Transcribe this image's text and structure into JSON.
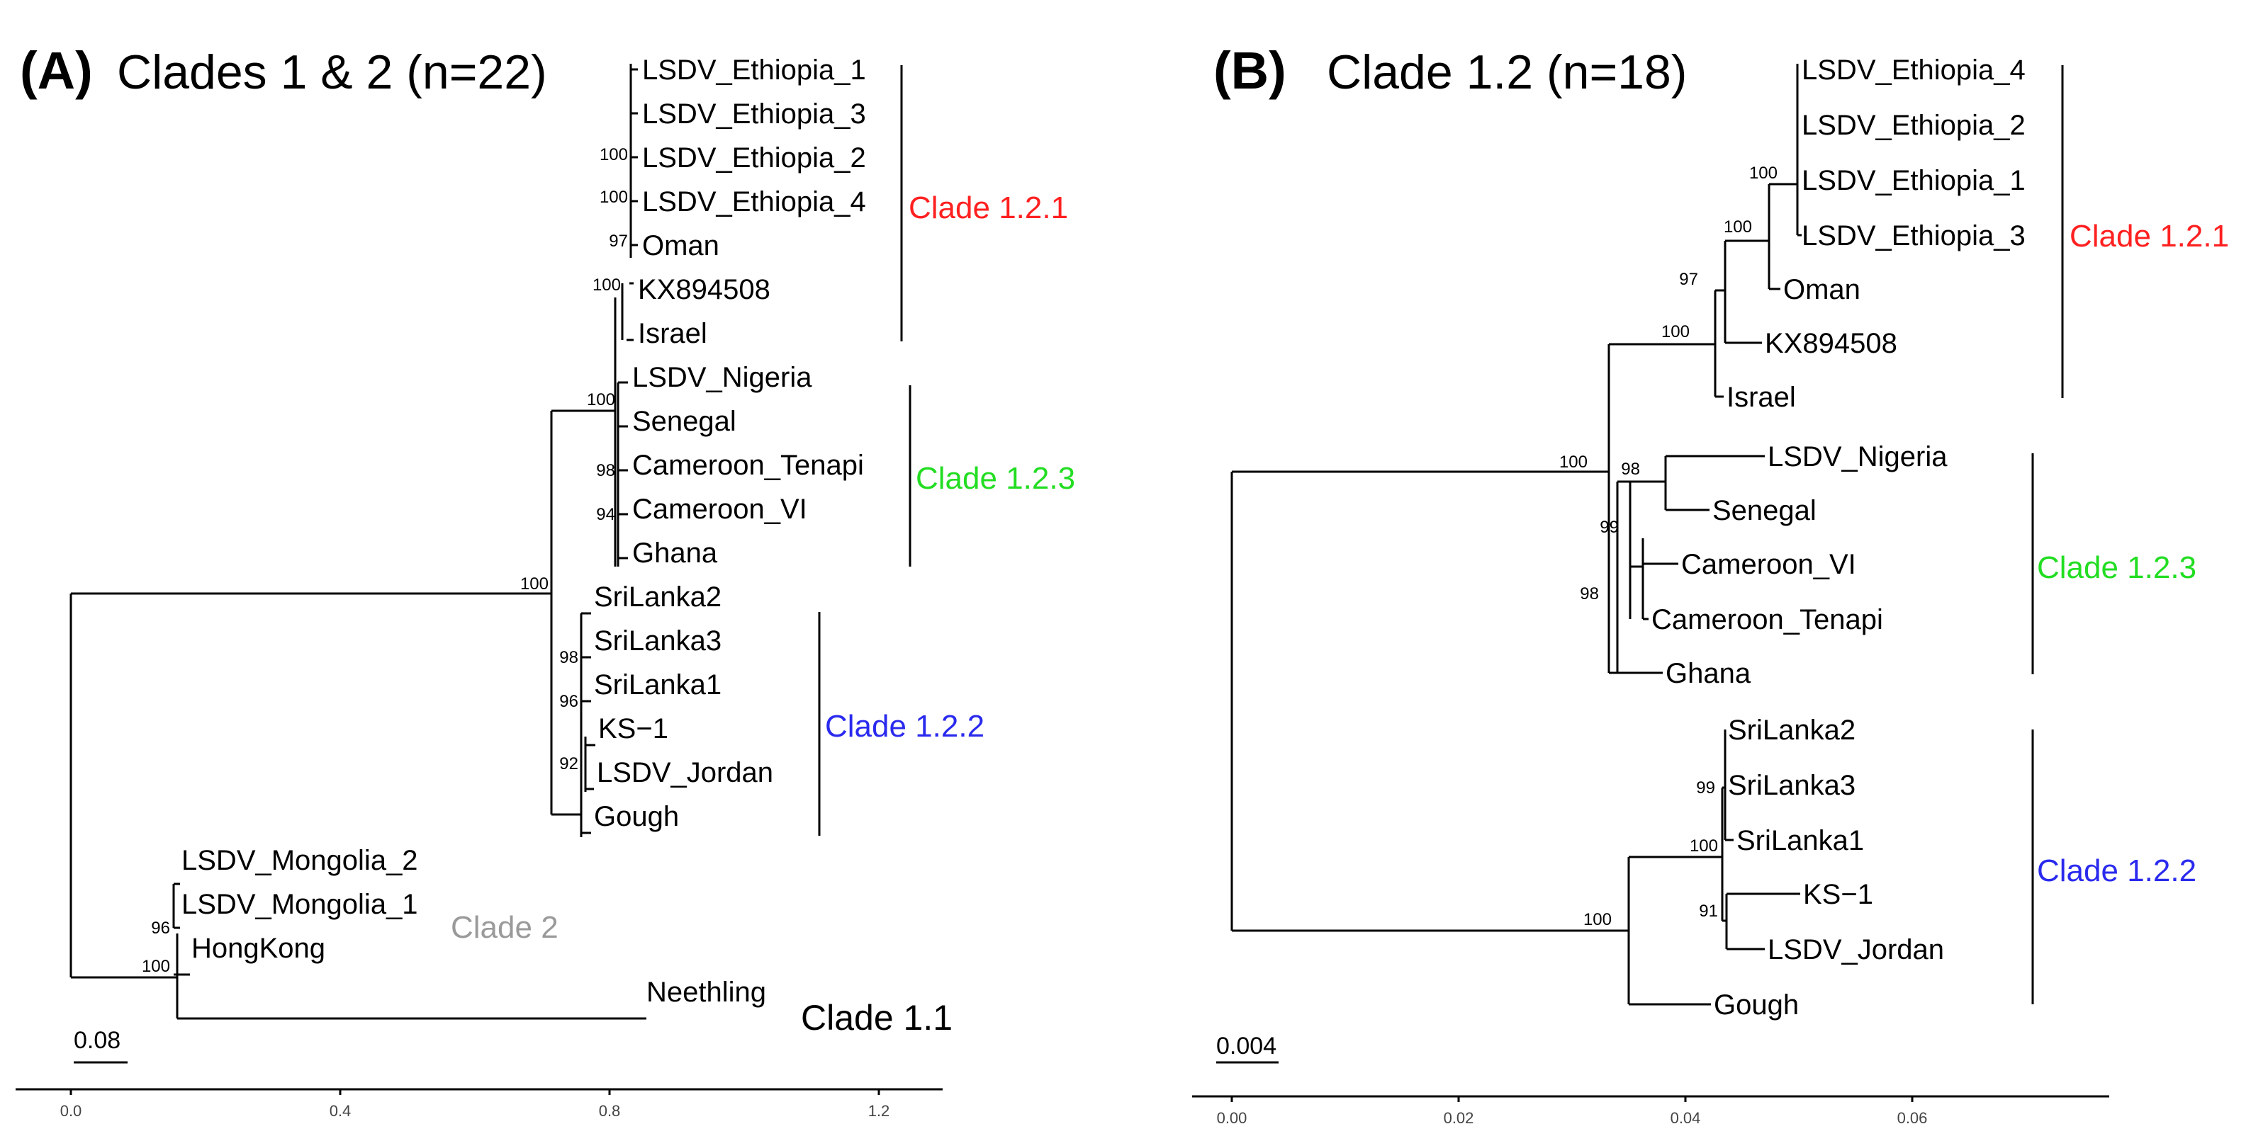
{
  "panelA": {
    "title_letter": "(A)",
    "title_text": "Clades 1 & 2 (n=22)",
    "tips": {
      "eth1": "LSDV_Ethiopia_1",
      "eth3": "LSDV_Ethiopia_3",
      "eth2": "LSDV_Ethiopia_2",
      "eth4": "LSDV_Ethiopia_4",
      "oman": "Oman",
      "kx": "KX894508",
      "israel": "Israel",
      "nigeria": "LSDV_Nigeria",
      "senegal": "Senegal",
      "camten": "Cameroon_Tenapi",
      "camvi": "Cameroon_VI",
      "ghana": "Ghana",
      "sl2": "SriLanka2",
      "sl3": "SriLanka3",
      "sl1": "SriLanka1",
      "ks1": "KS−1",
      "jordan": "LSDV_Jordan",
      "gough": "Gough",
      "mong2": "LSDV_Mongolia_2",
      "mong1": "LSDV_Mongolia_1",
      "hongkong": "HongKong",
      "neethling": "Neethling"
    },
    "bootstrap": {
      "b1": "100",
      "b2": "100",
      "b3": "97",
      "b4": "100",
      "b5": "100",
      "b6": "98",
      "b7": "94",
      "b8": "100",
      "b9": "98",
      "b10": "96",
      "b11": "92",
      "b12": "96",
      "b13": "100"
    },
    "clades": {
      "c121": "Clade 1.2.1",
      "c123": "Clade 1.2.3",
      "c122": "Clade 1.2.2",
      "c2": "Clade 2",
      "c11": "Clade 1.1"
    },
    "scale_label": "0.08",
    "axis_ticks": [
      "0.0",
      "0.4",
      "0.8",
      "1.2"
    ]
  },
  "panelB": {
    "title_letter": "(B)",
    "title_text": "Clade 1.2 (n=18)",
    "tips": {
      "eth4": "LSDV_Ethiopia_4",
      "eth2": "LSDV_Ethiopia_2",
      "eth1": "LSDV_Ethiopia_1",
      "eth3": "LSDV_Ethiopia_3",
      "oman": "Oman",
      "kx": "KX894508",
      "israel": "Israel",
      "nigeria": "LSDV_Nigeria",
      "senegal": "Senegal",
      "camvi": "Cameroon_VI",
      "camten": "Cameroon_Tenapi",
      "ghana": "Ghana",
      "sl2": "SriLanka2",
      "sl3": "SriLanka3",
      "sl1": "SriLanka1",
      "ks1": "KS−1",
      "jordan": "LSDV_Jordan",
      "gough": "Gough"
    },
    "bootstrap": {
      "b1": "100",
      "b2": "100",
      "b3": "97",
      "b4": "100",
      "b5": "100",
      "b6": "98",
      "b7": "99",
      "b8": "98",
      "b9": "99",
      "b10": "100",
      "b11": "91",
      "b12": "100"
    },
    "clades": {
      "c121": "Clade 1.2.1",
      "c123": "Clade 1.2.3",
      "c122": "Clade 1.2.2"
    },
    "scale_label": "0.004",
    "axis_ticks": [
      "0.00",
      "0.02",
      "0.04",
      "0.06"
    ]
  },
  "colors": {
    "red": "#ff2020",
    "green": "#22dd22",
    "blue": "#2a2aee",
    "grey": "#9a9a9a"
  }
}
